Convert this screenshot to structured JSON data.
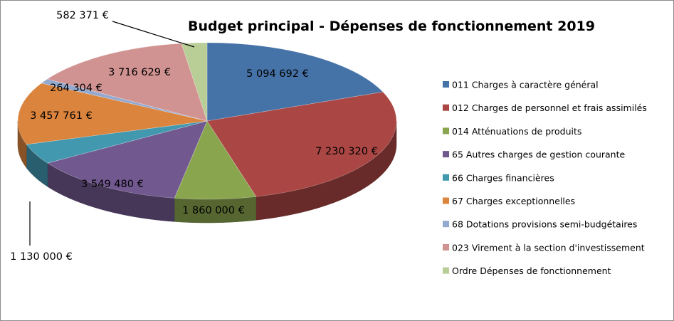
{
  "chart_data": {
    "type": "pie",
    "title": "Budget principal - Dépenses de fonctionnement 2019",
    "legend_position": "right",
    "slices": [
      {
        "name": "011 Charges à caractère général",
        "value": 5094692,
        "label": "5 094 692 €",
        "color": "#4572A7"
      },
      {
        "name": "012 Charges de personnel et frais assimilés",
        "value": 7230320,
        "label": "7 230 320 €",
        "color": "#AA4643"
      },
      {
        "name": "014 Atténuations de produits",
        "value": 1860000,
        "label": "1 860 000 €",
        "color": "#89A54E"
      },
      {
        "name": "65 Autres charges de gestion courante",
        "value": 3549480,
        "label": "3 549 480 €",
        "color": "#71588F"
      },
      {
        "name": "66 Charges financières",
        "value": 1130000,
        "label": "1 130 000 €",
        "color": "#4198AF"
      },
      {
        "name": "67 Charges exceptionnelles",
        "value": 3457761,
        "label": "3 457 761 €",
        "color": "#DB843D"
      },
      {
        "name": "68 Dotations provisions semi-budgétaires",
        "value": 264304,
        "label": "264 304 €",
        "color": "#93A9CF"
      },
      {
        "name": "023 Virement à la section d'investissement",
        "value": 3716629,
        "label": "3 716 629 €",
        "color": "#D19392"
      },
      {
        "name": "Ordre Dépenses de fonctionnement",
        "value": 582371,
        "label": "582 371 €",
        "color": "#B9CD96"
      }
    ]
  }
}
